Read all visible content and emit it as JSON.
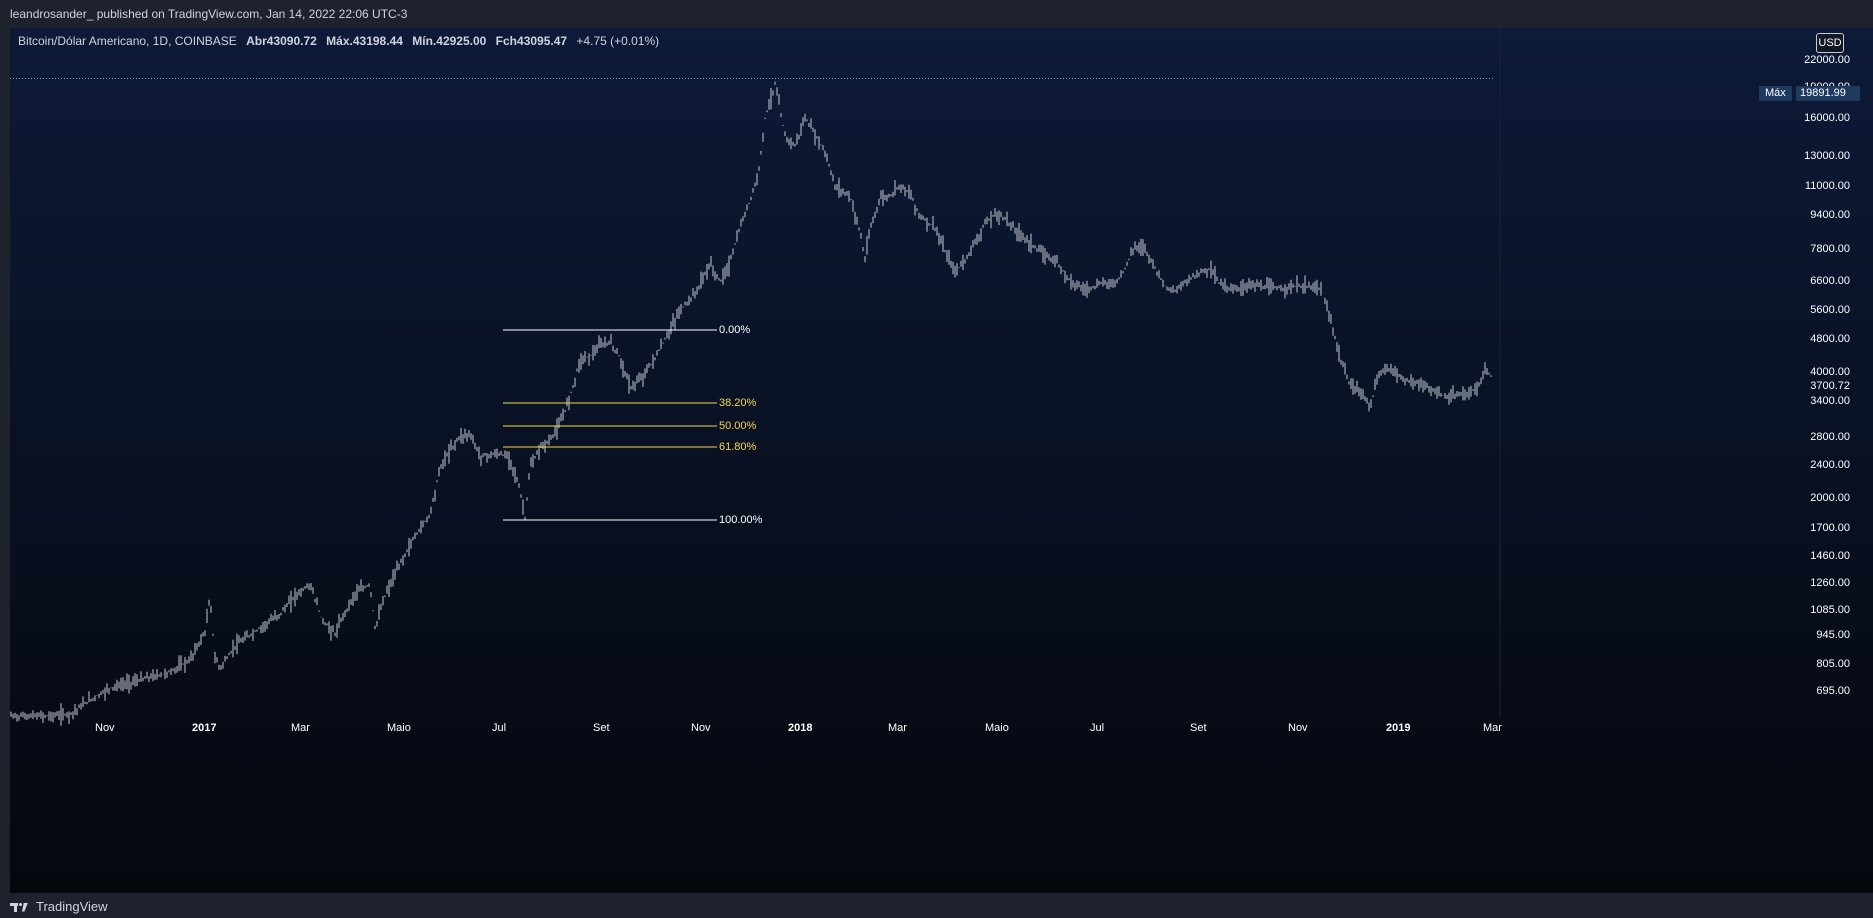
{
  "header": {
    "published": "leandrosander_  published on TradingView.com, Jan 14, 2022 22:06 UTC-3"
  },
  "symbol": {
    "name": "Bitcoin/Dólar Americano, 1D, COINBASE",
    "open_label": "Abr",
    "open": "43090.72",
    "high_label": "Máx.",
    "high": "43198.44",
    "low_label": "Mín.",
    "low": "42925.00",
    "close_label": "Fch",
    "close": "43095.47",
    "change": "+4.75 (+0.01%)"
  },
  "price_axis": {
    "currency": "USD",
    "max_label": "Máx",
    "max_value": "19891.99",
    "last_value": "3700.72",
    "ticks": [
      "22000.00",
      "19000.00",
      "16000.00",
      "13000.00",
      "11000.00",
      "9400.00",
      "7800.00",
      "6600.00",
      "5600.00",
      "4800.00",
      "4000.00",
      "3400.00",
      "2800.00",
      "2400.00",
      "2000.00",
      "1700.00",
      "1460.00",
      "1260.00",
      "1085.00",
      "945.00",
      "805.00",
      "695.00"
    ]
  },
  "time_axis": {
    "labels": [
      "Nov",
      "2017",
      "Mar",
      "Maio",
      "Jul",
      "Set",
      "Nov",
      "2018",
      "Mar",
      "Maio",
      "Jul",
      "Set",
      "Nov",
      "2019",
      "Mar"
    ]
  },
  "fibonacci": {
    "levels": [
      {
        "label": "0.00%",
        "color": "#ffffff"
      },
      {
        "label": "38.20%",
        "color": "#f7d74a"
      },
      {
        "label": "50.00%",
        "color": "#f7d74a"
      },
      {
        "label": "61.80%",
        "color": "#f7d74a"
      },
      {
        "label": "100.00%",
        "color": "#ffffff"
      }
    ]
  },
  "footer": {
    "brand": "TradingView"
  },
  "colors": {
    "bg_top": "#0d1a38",
    "bg_bottom": "#05070d",
    "bars": "#c5c9d2",
    "fib_key": "#ffffff",
    "fib_mid": "#f7d74a"
  }
}
